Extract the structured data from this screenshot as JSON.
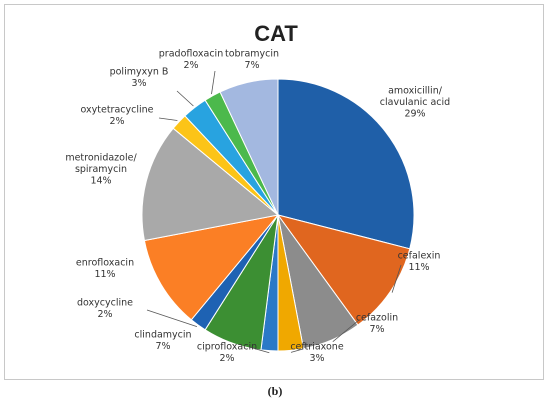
{
  "chart_data": {
    "type": "pie",
    "title": "CAT",
    "slices": [
      {
        "label": [
          "amoxicillin/",
          "clavulanic acid"
        ],
        "pct": "29%",
        "value": 29,
        "color": "#1f5fa8"
      },
      {
        "label": [
          "cefalexin"
        ],
        "pct": "11%",
        "value": 11,
        "color": "#e0661f"
      },
      {
        "label": [
          "cefazolin"
        ],
        "pct": "7%",
        "value": 7,
        "color": "#8c8c8c"
      },
      {
        "label": [
          "ceftriaxone"
        ],
        "pct": "3%",
        "value": 3,
        "color": "#f0a800"
      },
      {
        "label": [
          "ciprofloxacin"
        ],
        "pct": "2%",
        "value": 2,
        "color": "#2b79c7"
      },
      {
        "label": [
          "clindamycin"
        ],
        "pct": "7%",
        "value": 7,
        "color": "#3c8f33"
      },
      {
        "label": [
          "doxycycline"
        ],
        "pct": "2%",
        "value": 2,
        "color": "#1e62b3"
      },
      {
        "label": [
          "enrofloxacin"
        ],
        "pct": "11%",
        "value": 11,
        "color": "#fb7f25"
      },
      {
        "label": [
          "metronidazole/",
          "spiramycin"
        ],
        "pct": "14%",
        "value": 14,
        "color": "#a9a9a9"
      },
      {
        "label": [
          "oxytetracycline"
        ],
        "pct": "2%",
        "value": 2,
        "color": "#fcc418"
      },
      {
        "label": [
          "polimyxyn B"
        ],
        "pct": "3%",
        "value": 3,
        "color": "#28a3e0"
      },
      {
        "label": [
          "pradofloxacin"
        ],
        "pct": "2%",
        "value": 2,
        "color": "#4cb94c"
      },
      {
        "label": [
          "tobramycin"
        ],
        "pct": "7%",
        "value": 7,
        "color": "#a3b8e0"
      }
    ]
  },
  "caption": "(b)"
}
